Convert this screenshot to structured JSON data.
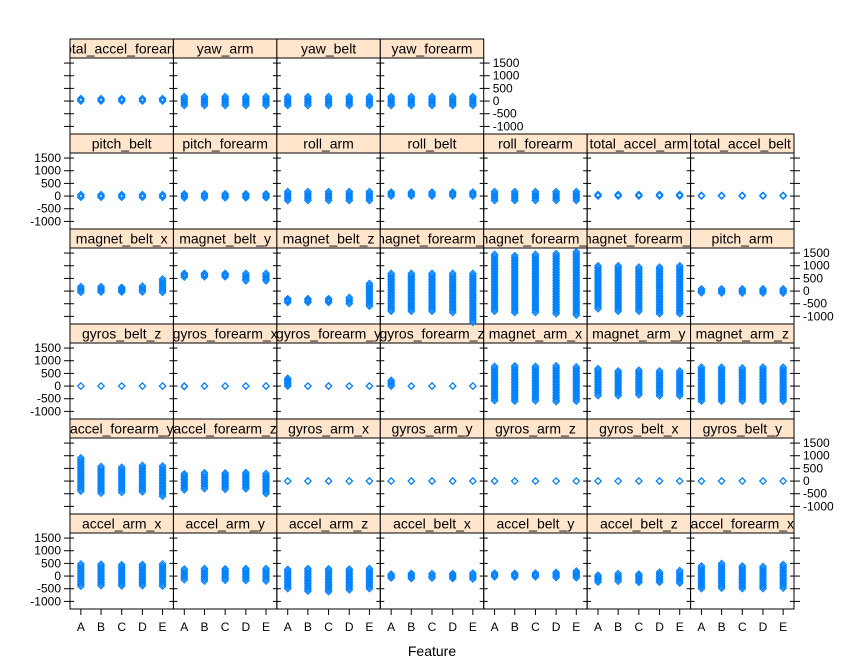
{
  "chart_data": {
    "type": "scatter",
    "xlabel": "Feature",
    "ylabel": "",
    "categories": [
      "A",
      "B",
      "C",
      "D",
      "E"
    ],
    "ylim": [
      -1300,
      1700
    ],
    "y_ticks": [
      -1000,
      -500,
      0,
      500,
      1000,
      1500
    ],
    "y_tick_labels": [
      "-1000",
      "-500",
      "0",
      "500",
      "1000",
      "1500"
    ],
    "point_color": "#0080ff",
    "strip_color": "#ffe5cc",
    "grid": false,
    "legend": "none",
    "layout": {
      "columns": 7,
      "rows": 6,
      "row_order": "bottom-to-top"
    },
    "panels": [
      {
        "label": "accel_arm_x",
        "ranges": [
          [
            -400,
            480
          ],
          [
            -380,
            470
          ],
          [
            -390,
            450
          ],
          [
            -380,
            460
          ],
          [
            -400,
            480
          ]
        ]
      },
      {
        "label": "accel_arm_y",
        "ranges": [
          [
            -150,
            280
          ],
          [
            -200,
            300
          ],
          [
            -170,
            290
          ],
          [
            -180,
            300
          ],
          [
            -200,
            300
          ]
        ]
      },
      {
        "label": "accel_arm_z",
        "ranges": [
          [
            -500,
            270
          ],
          [
            -600,
            300
          ],
          [
            -620,
            290
          ],
          [
            -550,
            280
          ],
          [
            -500,
            300
          ]
        ]
      },
      {
        "label": "accel_belt_x",
        "ranges": [
          [
            -80,
            80
          ],
          [
            -100,
            110
          ],
          [
            -80,
            100
          ],
          [
            -100,
            100
          ],
          [
            -120,
            120
          ]
        ]
      },
      {
        "label": "accel_belt_y",
        "ranges": [
          [
            -30,
            120
          ],
          [
            -40,
            110
          ],
          [
            -30,
            120
          ],
          [
            -60,
            150
          ],
          [
            -70,
            200
          ]
        ]
      },
      {
        "label": "accel_belt_z",
        "ranges": [
          [
            -240,
            40
          ],
          [
            -210,
            100
          ],
          [
            -250,
            80
          ],
          [
            -250,
            160
          ],
          [
            -280,
            220
          ]
        ]
      },
      {
        "label": "accel_forearm_x",
        "ranges": [
          [
            -500,
            400
          ],
          [
            -480,
            500
          ],
          [
            -500,
            400
          ],
          [
            -500,
            380
          ],
          [
            -480,
            460
          ]
        ]
      },
      {
        "label": "accel_forearm_y",
        "ranges": [
          [
            -400,
            920
          ],
          [
            -480,
            580
          ],
          [
            -450,
            550
          ],
          [
            -430,
            620
          ],
          [
            -600,
            600
          ]
        ]
      },
      {
        "label": "accel_forearm_z",
        "ranges": [
          [
            -350,
            290
          ],
          [
            -300,
            330
          ],
          [
            -330,
            320
          ],
          [
            -310,
            340
          ],
          [
            -500,
            300
          ]
        ]
      },
      {
        "label": "gyros_arm_x",
        "ranges": [
          [
            -5,
            5
          ],
          [
            -5,
            5
          ],
          [
            -5,
            5
          ],
          [
            -5,
            5
          ],
          [
            -5,
            5
          ]
        ]
      },
      {
        "label": "gyros_arm_y",
        "ranges": [
          [
            -4,
            4
          ],
          [
            -4,
            4
          ],
          [
            -4,
            4
          ],
          [
            -4,
            4
          ],
          [
            -4,
            4
          ]
        ]
      },
      {
        "label": "gyros_arm_z",
        "ranges": [
          [
            -3,
            3
          ],
          [
            -3,
            3
          ],
          [
            -3,
            3
          ],
          [
            -3,
            3
          ],
          [
            -3,
            3
          ]
        ]
      },
      {
        "label": "gyros_belt_x",
        "ranges": [
          [
            -1,
            2
          ],
          [
            -1,
            2
          ],
          [
            -1,
            2
          ],
          [
            -1,
            2
          ],
          [
            -1,
            2
          ]
        ]
      },
      {
        "label": "gyros_belt_y",
        "ranges": [
          [
            -1,
            1
          ],
          [
            -1,
            1
          ],
          [
            -1,
            1
          ],
          [
            -1,
            1
          ],
          [
            -1,
            1
          ]
        ]
      },
      {
        "label": "gyros_belt_z",
        "ranges": [
          [
            -1,
            1
          ],
          [
            -1,
            1
          ],
          [
            -1,
            1
          ],
          [
            -1,
            1
          ],
          [
            -1,
            1
          ]
        ]
      },
      {
        "label": "gyros_forearm_x",
        "ranges": [
          [
            -22,
            4
          ],
          [
            -4,
            4
          ],
          [
            -4,
            4
          ],
          [
            -4,
            4
          ],
          [
            -4,
            4
          ]
        ]
      },
      {
        "label": "gyros_forearm_y",
        "ranges": [
          [
            -7,
            311
          ],
          [
            -7,
            7
          ],
          [
            -7,
            7
          ],
          [
            -7,
            7
          ],
          [
            -7,
            7
          ]
        ]
      },
      {
        "label": "gyros_forearm_z",
        "ranges": [
          [
            -5,
            231
          ],
          [
            -5,
            5
          ],
          [
            -5,
            5
          ],
          [
            -5,
            5
          ],
          [
            -5,
            5
          ]
        ]
      },
      {
        "label": "magnet_arm_x",
        "ranges": [
          [
            -580,
            780
          ],
          [
            -600,
            800
          ],
          [
            -590,
            780
          ],
          [
            -620,
            800
          ],
          [
            -600,
            760
          ]
        ]
      },
      {
        "label": "magnet_arm_y",
        "ranges": [
          [
            -380,
            690
          ],
          [
            -380,
            600
          ],
          [
            -350,
            630
          ],
          [
            -390,
            600
          ],
          [
            -390,
            600
          ]
        ]
      },
      {
        "label": "magnet_arm_z",
        "ranges": [
          [
            -600,
            750
          ],
          [
            -600,
            750
          ],
          [
            -600,
            720
          ],
          [
            -600,
            750
          ],
          [
            -600,
            750
          ]
        ]
      },
      {
        "label": "magnet_belt_x",
        "ranges": [
          [
            -50,
            180
          ],
          [
            -40,
            180
          ],
          [
            -40,
            150
          ],
          [
            -40,
            200
          ],
          [
            -50,
            480
          ]
        ]
      },
      {
        "label": "magnet_belt_y",
        "ranges": [
          [
            550,
            700
          ],
          [
            560,
            700
          ],
          [
            560,
            700
          ],
          [
            400,
            700
          ],
          [
            400,
            700
          ]
        ]
      },
      {
        "label": "magnet_belt_z",
        "ranges": [
          [
            -450,
            -300
          ],
          [
            -450,
            -300
          ],
          [
            -450,
            -300
          ],
          [
            -500,
            -250
          ],
          [
            -600,
            300
          ]
        ]
      },
      {
        "label": "magnet_forearm_x",
        "ranges": [
          [
            -800,
            700
          ],
          [
            -800,
            700
          ],
          [
            -800,
            700
          ],
          [
            -850,
            700
          ],
          [
            -1250,
            700
          ]
        ]
      },
      {
        "label": "magnet_forearm_y",
        "ranges": [
          [
            -800,
            1450
          ],
          [
            -850,
            1400
          ],
          [
            -850,
            1450
          ],
          [
            -900,
            1480
          ],
          [
            -950,
            1550
          ]
        ]
      },
      {
        "label": "magnet_forearm_z",
        "ranges": [
          [
            -700,
            1000
          ],
          [
            -800,
            1000
          ],
          [
            -800,
            950
          ],
          [
            -900,
            950
          ],
          [
            -900,
            1000
          ]
        ]
      },
      {
        "label": "pitch_arm",
        "ranges": [
          [
            -70,
            90
          ],
          [
            -80,
            90
          ],
          [
            -80,
            90
          ],
          [
            -80,
            90
          ],
          [
            -80,
            90
          ]
        ]
      },
      {
        "label": "pitch_belt",
        "ranges": [
          [
            -50,
            60
          ],
          [
            -50,
            60
          ],
          [
            -50,
            60
          ],
          [
            -50,
            60
          ],
          [
            -50,
            60
          ]
        ]
      },
      {
        "label": "pitch_forearm",
        "ranges": [
          [
            -70,
            90
          ],
          [
            -70,
            90
          ],
          [
            -70,
            90
          ],
          [
            -70,
            90
          ],
          [
            -70,
            90
          ]
        ]
      },
      {
        "label": "roll_arm",
        "ranges": [
          [
            -180,
            180
          ],
          [
            -180,
            180
          ],
          [
            -180,
            180
          ],
          [
            -180,
            180
          ],
          [
            -180,
            180
          ]
        ]
      },
      {
        "label": "roll_belt",
        "ranges": [
          [
            0,
            160
          ],
          [
            0,
            160
          ],
          [
            0,
            160
          ],
          [
            0,
            160
          ],
          [
            0,
            160
          ]
        ]
      },
      {
        "label": "roll_forearm",
        "ranges": [
          [
            -180,
            180
          ],
          [
            -180,
            180
          ],
          [
            -180,
            180
          ],
          [
            -180,
            180
          ],
          [
            -180,
            180
          ]
        ]
      },
      {
        "label": "total_accel_arm",
        "ranges": [
          [
            0,
            65
          ],
          [
            0,
            65
          ],
          [
            0,
            65
          ],
          [
            0,
            65
          ],
          [
            0,
            65
          ]
        ]
      },
      {
        "label": "total_accel_belt",
        "ranges": [
          [
            0,
            30
          ],
          [
            0,
            30
          ],
          [
            0,
            30
          ],
          [
            0,
            30
          ],
          [
            0,
            30
          ]
        ]
      },
      {
        "label": "total_accel_forearm",
        "ranges": [
          [
            0,
            100
          ],
          [
            0,
            100
          ],
          [
            0,
            100
          ],
          [
            0,
            100
          ],
          [
            0,
            100
          ]
        ]
      },
      {
        "label": "yaw_arm",
        "ranges": [
          [
            -180,
            180
          ],
          [
            -180,
            180
          ],
          [
            -180,
            180
          ],
          [
            -180,
            180
          ],
          [
            -180,
            180
          ]
        ]
      },
      {
        "label": "yaw_belt",
        "ranges": [
          [
            -180,
            180
          ],
          [
            -180,
            180
          ],
          [
            -180,
            180
          ],
          [
            -180,
            180
          ],
          [
            -180,
            180
          ]
        ]
      },
      {
        "label": "yaw_forearm",
        "ranges": [
          [
            -180,
            180
          ],
          [
            -180,
            180
          ],
          [
            -180,
            180
          ],
          [
            -180,
            180
          ],
          [
            -180,
            180
          ]
        ]
      }
    ]
  }
}
